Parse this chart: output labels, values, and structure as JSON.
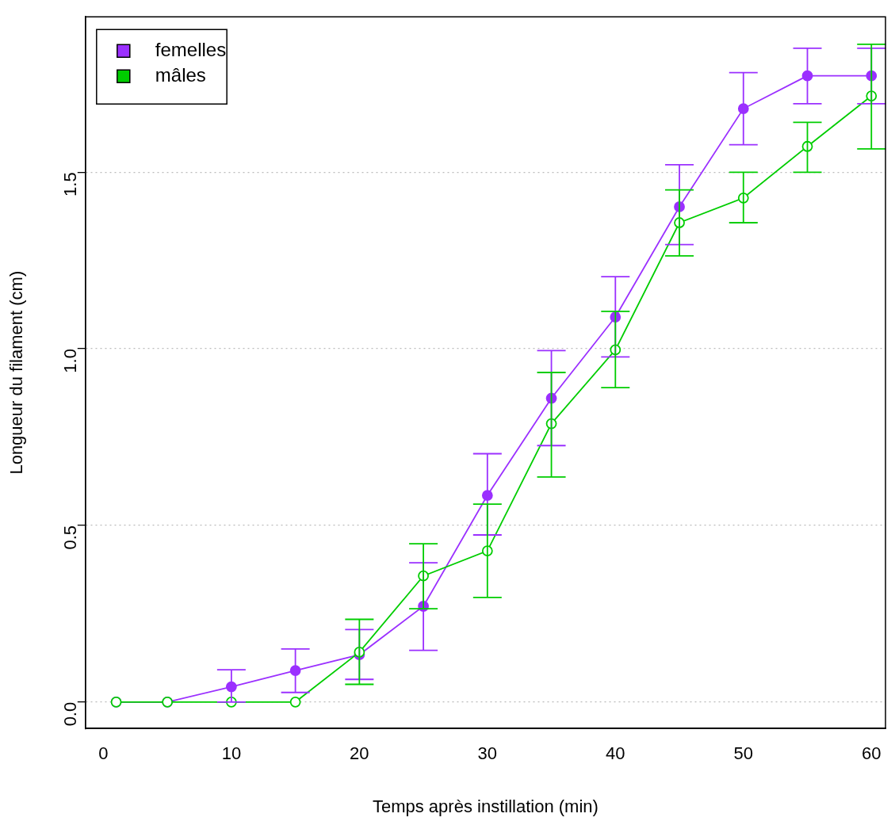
{
  "chart_data": {
    "type": "line",
    "xlabel": "Temps après instillation (min)",
    "ylabel": "Longueur du filament (cm)",
    "x": [
      1,
      5,
      10,
      15,
      20,
      25,
      30,
      35,
      40,
      45,
      50,
      55,
      60
    ],
    "series": [
      {
        "name": "femelles",
        "color": "#9b30ff",
        "marker": "circle",
        "values": [
          0,
          0,
          0.043,
          0.089,
          0.134,
          0.271,
          0.585,
          0.86,
          1.09,
          1.402,
          1.68,
          1.773,
          1.773
        ],
        "errors": [
          null,
          null,
          [
            0,
            0.091
          ],
          [
            0.027,
            0.15
          ],
          [
            0.064,
            0.205
          ],
          [
            0.146,
            0.394
          ],
          [
            0.473,
            0.703
          ],
          [
            0.726,
            0.995
          ],
          [
            0.977,
            1.204
          ],
          [
            1.295,
            1.521
          ],
          [
            1.578,
            1.782
          ],
          [
            1.694,
            1.851
          ],
          [
            1.694,
            1.851
          ]
        ]
      },
      {
        "name": "mâles",
        "color": "#00cd00",
        "marker": "open-circle",
        "values": [
          0,
          0,
          0,
          0,
          0.141,
          0.357,
          0.428,
          0.788,
          0.997,
          1.357,
          1.427,
          1.573,
          1.716
        ],
        "errors": [
          null,
          null,
          null,
          null,
          [
            0.05,
            0.234
          ],
          [
            0.264,
            0.448
          ],
          [
            0.296,
            0.56
          ],
          [
            0.637,
            0.933
          ],
          [
            0.89,
            1.106
          ],
          [
            1.263,
            1.45
          ],
          [
            1.357,
            1.5
          ],
          [
            1.5,
            1.641
          ],
          [
            1.566,
            1.862
          ]
        ]
      }
    ],
    "xlim": [
      -1.4,
      61.1
    ],
    "ylim": [
      -0.075,
      1.94
    ],
    "xticks": [
      0,
      10,
      20,
      30,
      40,
      50,
      60
    ],
    "yticks": [
      {
        "value": 0,
        "label": "0.0"
      },
      {
        "value": 0.5,
        "label": "0.5"
      },
      {
        "value": 1,
        "label": "1.0"
      },
      {
        "value": 1.5,
        "label": "1.5"
      }
    ],
    "grid": "y",
    "legend": "top left"
  }
}
